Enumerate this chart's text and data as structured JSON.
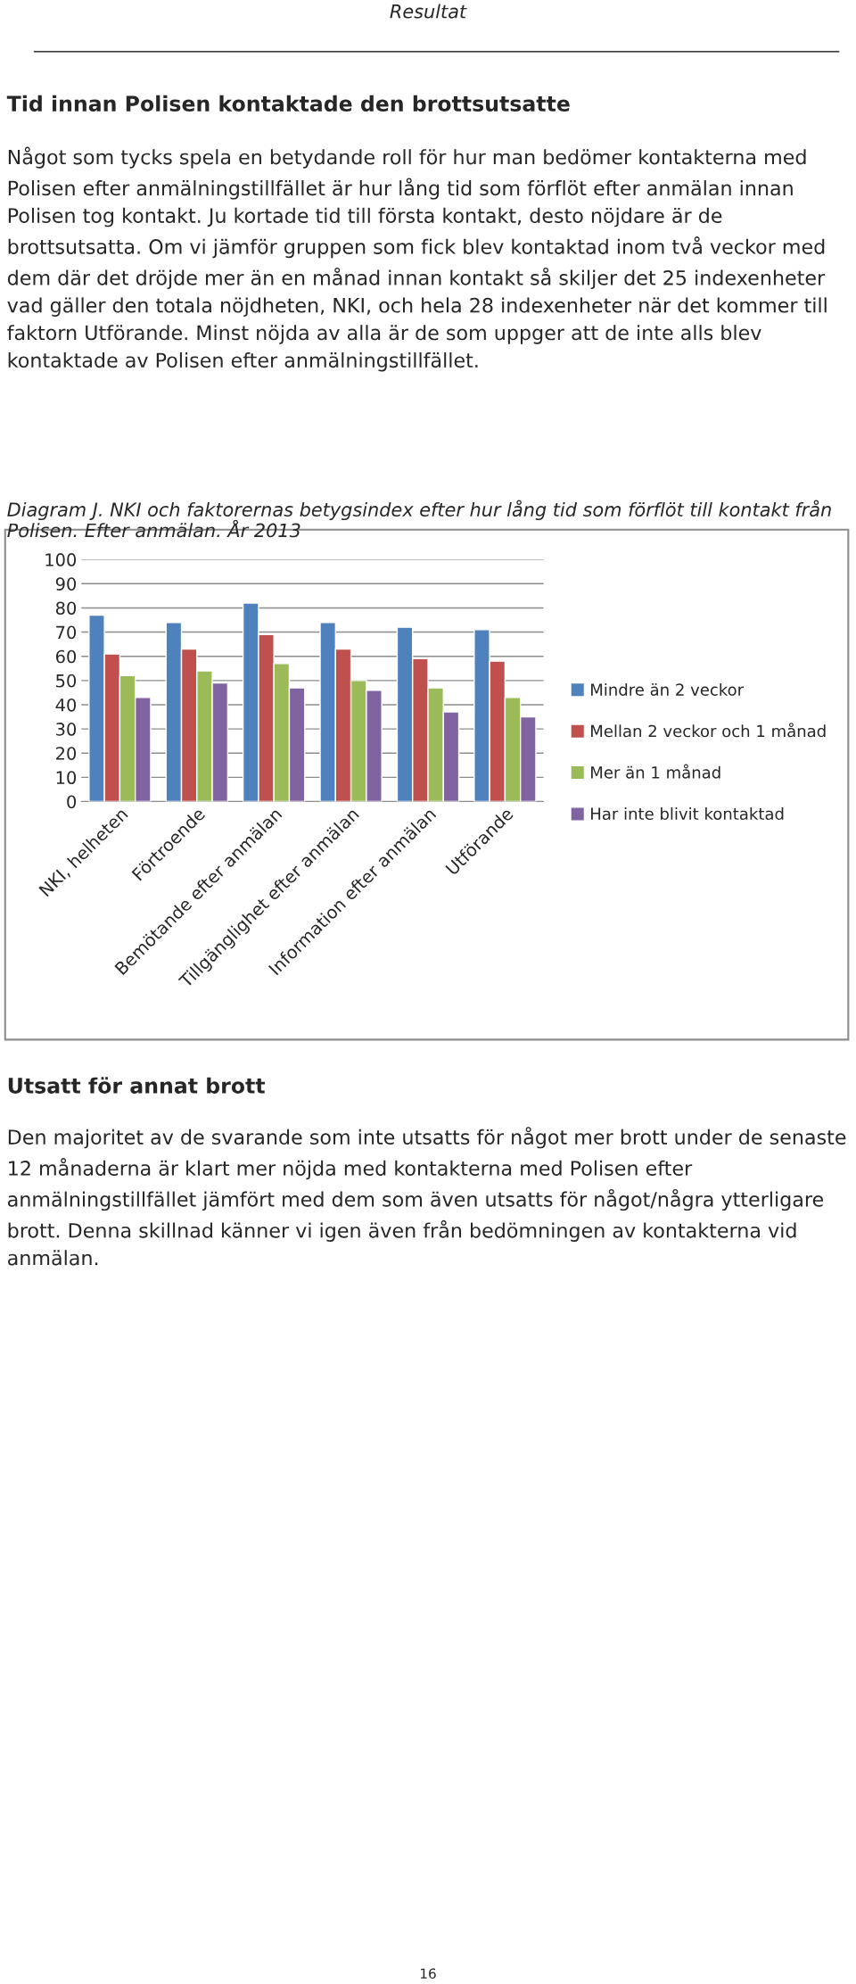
{
  "chart_data": {
    "type": "bar",
    "title": "Diagram J. NKI och faktorernas betygsindex efter hur lång tid som förflöt till kontakt från Polisen. Efter anmälan. År 2013",
    "categories": [
      "NKI, helheten",
      "Förtroende",
      "Bemötande efter anmälan",
      "Tillgänglighet efter anmälan",
      "Information efter anmälan",
      "Utförande"
    ],
    "series": [
      {
        "name": "Mindre än 2 veckor",
        "color": "#4f81bd",
        "values": [
          77,
          74,
          82,
          74,
          72,
          71
        ]
      },
      {
        "name": "Mellan 2 veckor och 1 månad",
        "color": "#c0504d",
        "values": [
          61,
          63,
          69,
          63,
          59,
          58
        ]
      },
      {
        "name": "Mer än 1 månad",
        "color": "#9bbb59",
        "values": [
          52,
          54,
          57,
          50,
          47,
          43
        ]
      },
      {
        "name": "Har inte blivit kontaktad",
        "color": "#8064a2",
        "values": [
          43,
          49,
          47,
          46,
          37,
          35
        ]
      }
    ],
    "ylim": [
      0,
      100
    ],
    "yticks": [
      0,
      10,
      20,
      30,
      40,
      50,
      60,
      70,
      80,
      90,
      100
    ],
    "grid": "y",
    "legend": "right",
    "annotations": [
      "Resultat",
      "Tid innan Polisen kontaktade den brottsutsatte",
      "Något som tycks spela en betydande roll för hur man bedömer kontakterna med Polisen efter anmälningstillfället är hur lång tid som förflöt efter anmälan innan Polisen tog kontakt. Ju kortade tid till första kontakt, desto nöjdare är de brottsutsatta. Om vi jämför gruppen som fick blev kontaktad inom två veckor med dem där det dröjde mer än en månad innan kontakt så skiljer det 25 indexenheter vad gäller den totala nöjdheten, NKI, och hela 28 indexenheter när det kommer till faktorn Utförande. Minst nöjda av alla är de som uppger att de inte alls blev kontaktade av Polisen efter anmälningstillfället.",
      "Utsatt för annat brott",
      "Den majoritet av de svarande som inte utsatts för något mer brott under de senaste 12 månaderna är klart mer nöjda med kontakterna med Polisen efter anmälningstillfället jämfört med dem som även utsatts för något/några ytterligare brott. Denna skillnad känner vi igen även från bedömningen av kontakterna vid anmälan.",
      "16"
    ]
  }
}
